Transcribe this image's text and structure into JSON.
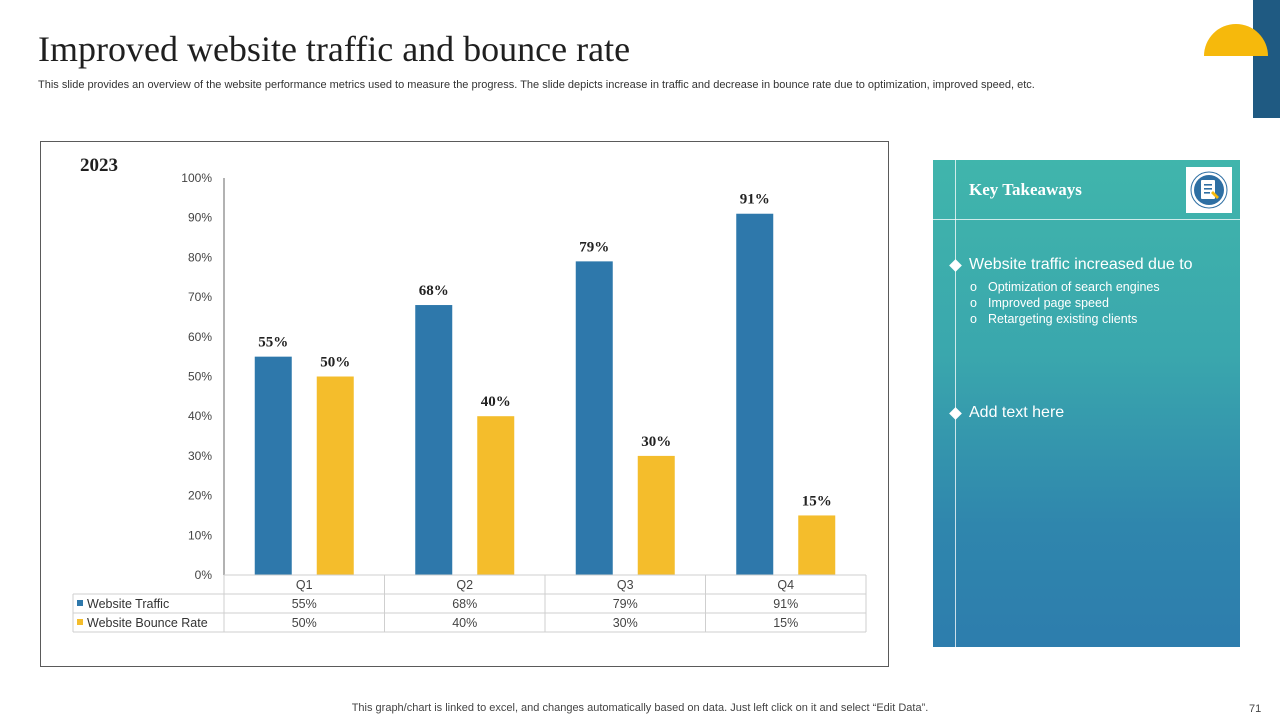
{
  "slide": {
    "title": "Improved website traffic and bounce rate",
    "subtitle": "This slide provides an overview of the website performance metrics used to measure the progress. The slide depicts increase in traffic and decrease in bounce rate due to optimization, improved speed, etc.",
    "footnote": "This graph/chart is linked to excel,  and changes automatically based on data. Just left click on it and select “Edit Data”.",
    "page_number": "71",
    "accent_yellow": "#f6b90c",
    "accent_navy": "#1f5a82"
  },
  "chart_data": {
    "type": "bar",
    "title": "2023",
    "categories": [
      "Q1",
      "Q2",
      "Q3",
      "Q4"
    ],
    "series": [
      {
        "name": "Website Traffic",
        "values": [
          55,
          68,
          79,
          91
        ],
        "labels": [
          "55%",
          "68%",
          "79%",
          "91%"
        ],
        "color": "#2e78ab"
      },
      {
        "name": "Website Bounce Rate",
        "values": [
          50,
          40,
          30,
          15
        ],
        "labels": [
          "50%",
          "40%",
          "30%",
          "15%"
        ],
        "color": "#f4bd2c"
      }
    ],
    "yticks": [
      "0%",
      "10%",
      "20%",
      "30%",
      "40%",
      "50%",
      "60%",
      "70%",
      "80%",
      "90%",
      "100%"
    ],
    "ylim": [
      0,
      100
    ],
    "grid": false,
    "data_table": true
  },
  "takeaways": {
    "title": "Key Takeaways",
    "icon": "document-list-icon",
    "points": [
      {
        "text": "Website traffic increased due to",
        "subpoints": [
          "Optimization of search engines",
          "Improved  page speed",
          "Retargeting existing clients"
        ]
      },
      {
        "text": "Add text here",
        "subpoints": []
      }
    ],
    "sub_bullet": "o"
  }
}
